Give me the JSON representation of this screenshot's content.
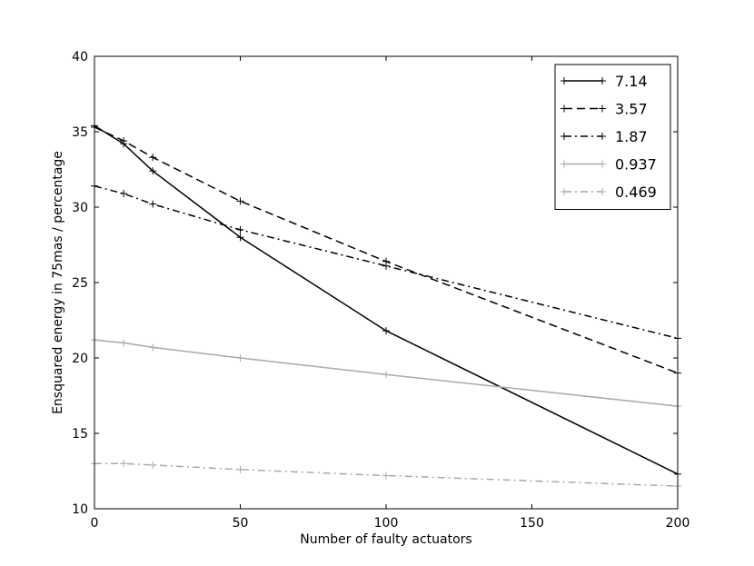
{
  "chart_data": {
    "type": "line",
    "title": "",
    "xlabel": "Number of faulty actuators",
    "ylabel": "Ensquared energy in 75mas / percentage",
    "xlim": [
      0,
      200
    ],
    "ylim": [
      10,
      40
    ],
    "xticks": [
      "0",
      "50",
      "100",
      "150",
      "200"
    ],
    "yticks": [
      "10",
      "15",
      "20",
      "25",
      "30",
      "35",
      "40"
    ],
    "grid": false,
    "legend_position": "top-right",
    "series": [
      {
        "name": "7.14",
        "color": "#000000",
        "dash": "solid",
        "x": [
          0,
          10,
          20,
          50,
          100,
          200
        ],
        "y": [
          35.4,
          34.2,
          32.4,
          28.0,
          21.8,
          12.3
        ]
      },
      {
        "name": "3.57",
        "color": "#000000",
        "dash": "dashed",
        "x": [
          0,
          10,
          20,
          50,
          100,
          200
        ],
        "y": [
          35.3,
          34.4,
          33.3,
          30.4,
          26.4,
          19.0
        ]
      },
      {
        "name": "1.87",
        "color": "#000000",
        "dash": "dashdot",
        "x": [
          0,
          10,
          20,
          50,
          100,
          200
        ],
        "y": [
          31.4,
          30.9,
          30.2,
          28.5,
          26.1,
          21.3
        ]
      },
      {
        "name": "0.937",
        "color": "#a9a9a9",
        "dash": "solid",
        "x": [
          0,
          10,
          20,
          50,
          100,
          200
        ],
        "y": [
          21.2,
          21.0,
          20.7,
          20.0,
          18.9,
          16.8
        ]
      },
      {
        "name": "0.469",
        "color": "#a9a9a9",
        "dash": "dashdot",
        "x": [
          0,
          10,
          20,
          50,
          100,
          200
        ],
        "y": [
          13.0,
          13.0,
          12.9,
          12.6,
          12.2,
          11.5
        ]
      }
    ]
  }
}
